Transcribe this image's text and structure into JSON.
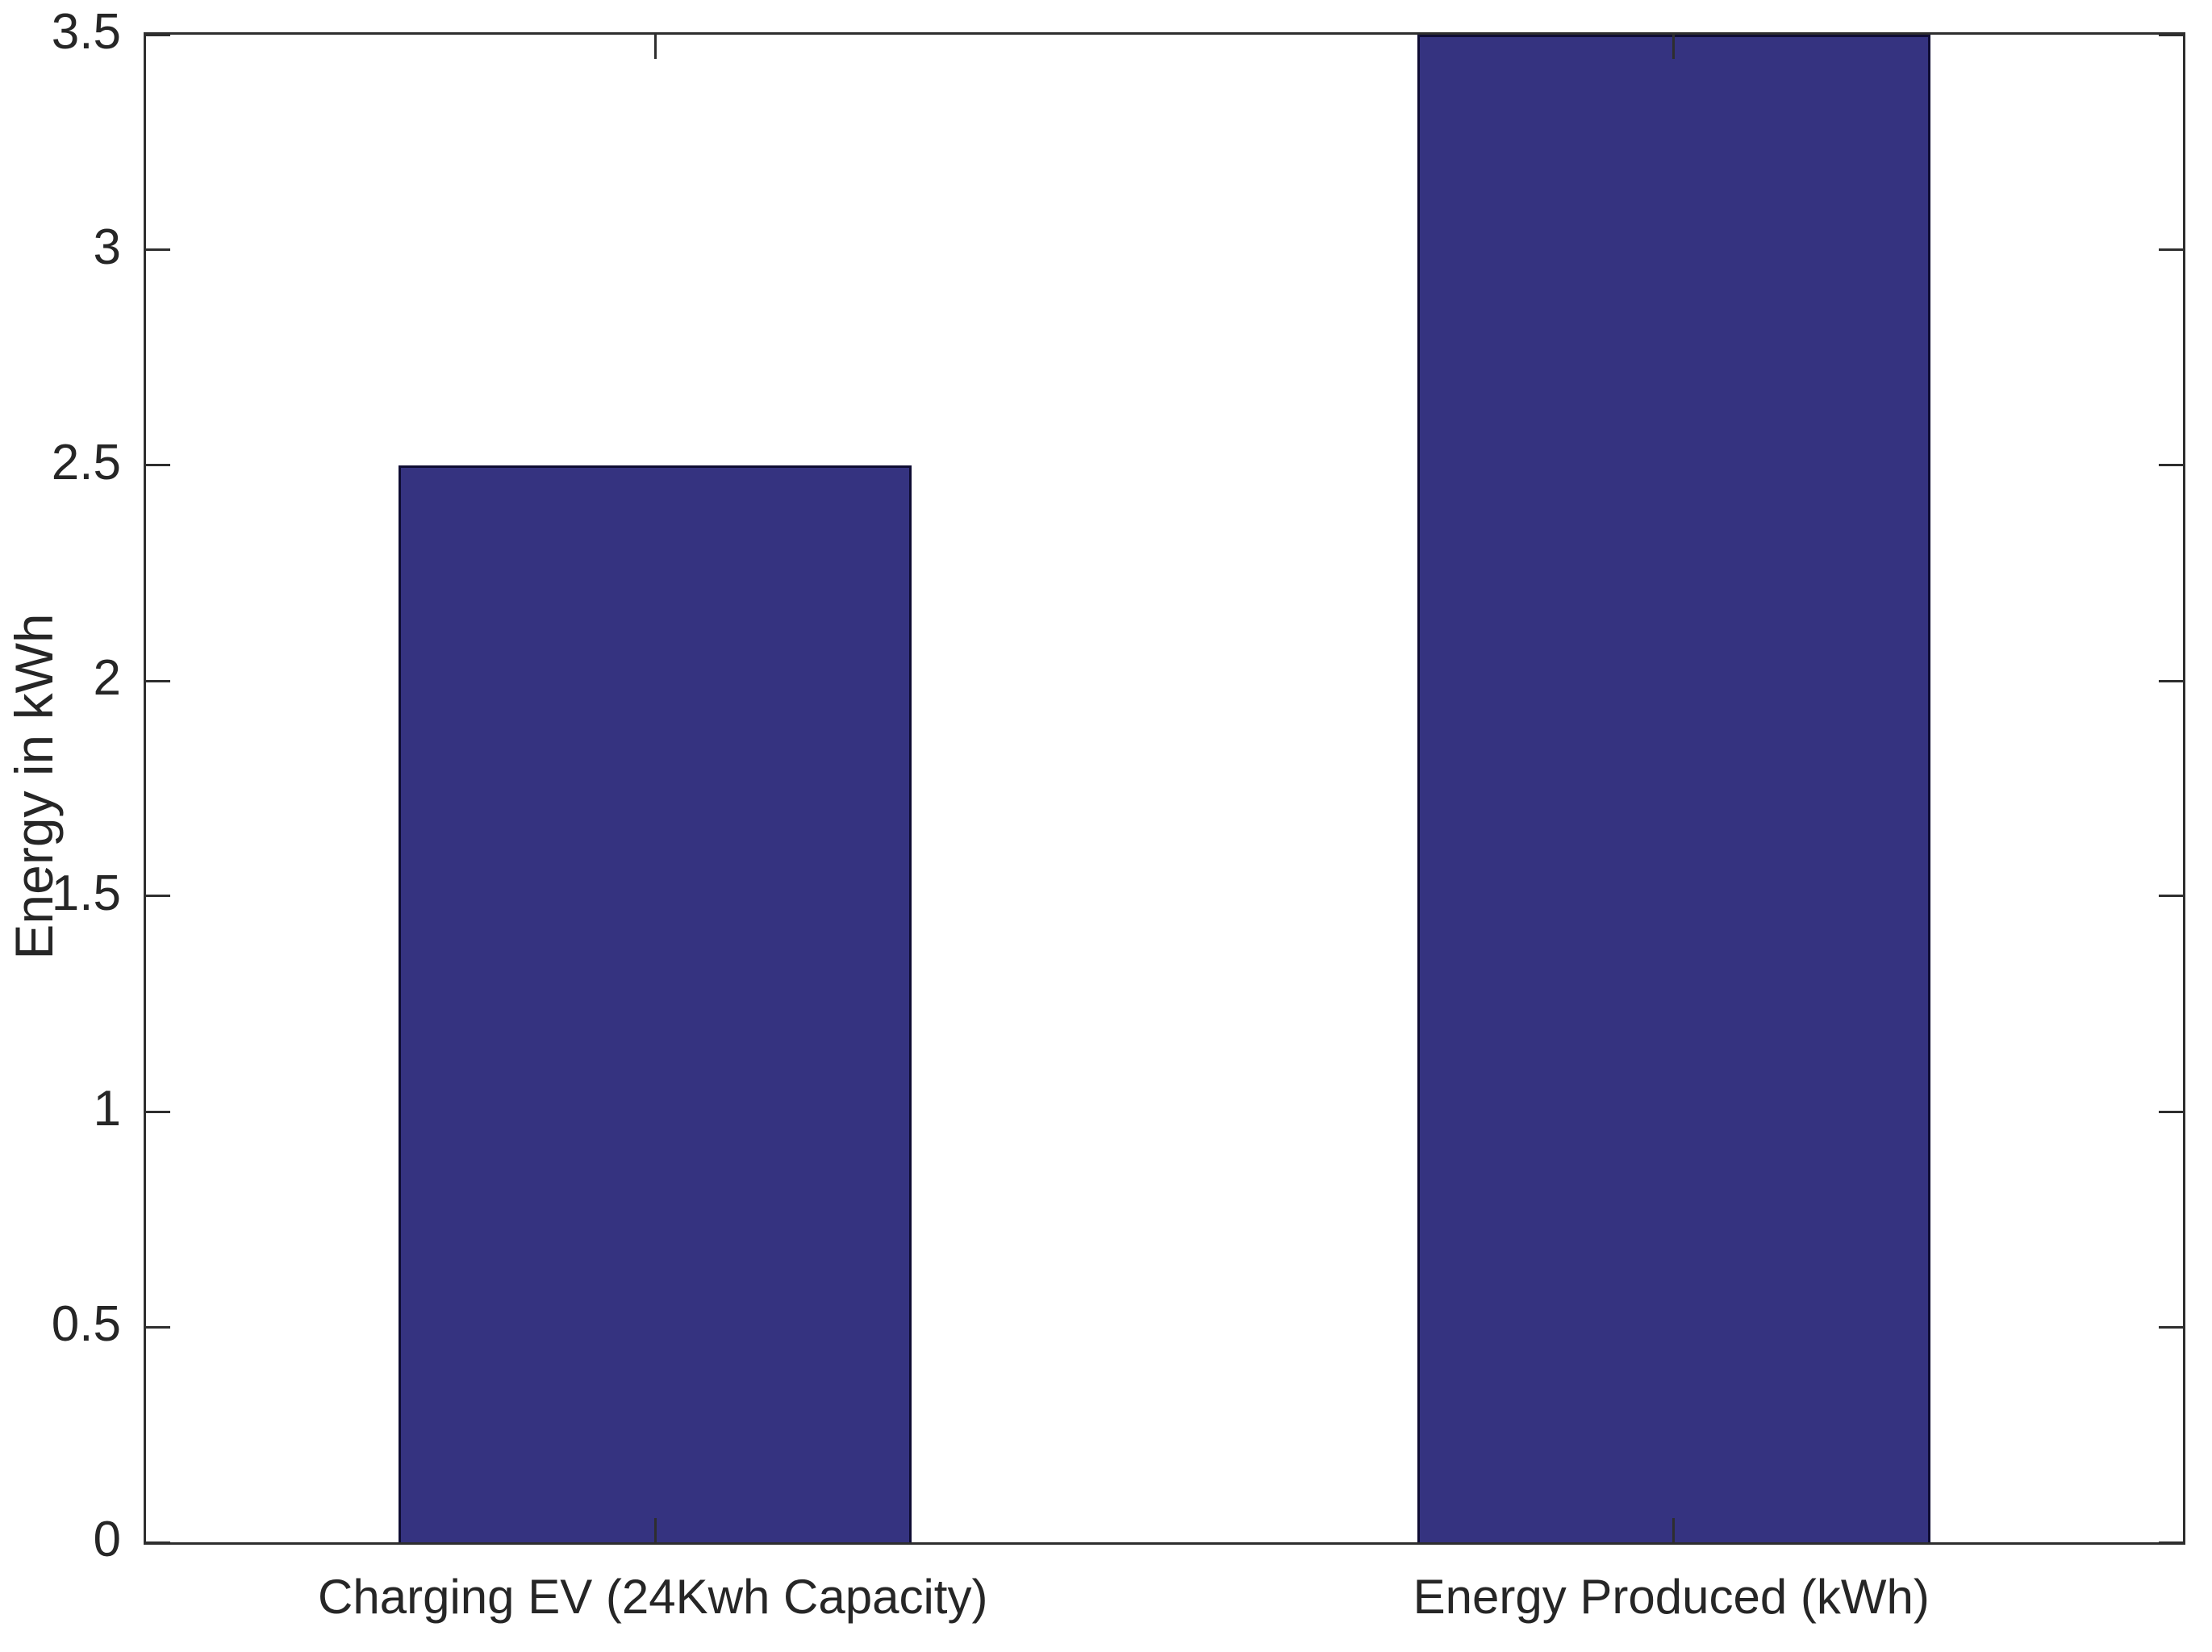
{
  "chart_data": {
    "type": "bar",
    "title": "",
    "categories": [
      "Charging EV (24Kwh Capacity)",
      "Energy Produced (kWh)"
    ],
    "values": [
      2.5,
      3.5
    ],
    "xlabel": "",
    "ylabel": "Energy in kWh",
    "ylim": [
      0,
      3.5
    ],
    "yticks": [
      0,
      0.5,
      1,
      1.5,
      2,
      2.5,
      3,
      3.5
    ],
    "ytick_labels": [
      "0",
      "0.5",
      "1",
      "1.5",
      "2",
      "2.5",
      "3",
      "3.5"
    ],
    "grid": "off",
    "legend": "none",
    "bar_width_fraction": 0.252,
    "bar_color": "#353380",
    "bar_edge_color": "#0f0d33",
    "axis_color": "#2e2e2e",
    "tick_label_color": "#262626",
    "background_color": "#ffffff"
  }
}
